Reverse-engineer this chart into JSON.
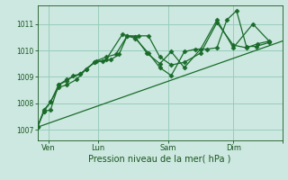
{
  "background_color": "#cce8e0",
  "grid_color": "#99ccbb",
  "line_color": "#1a6b2a",
  "marker_color": "#1a6b2a",
  "text_color": "#1a5520",
  "xlabel": "Pression niveau de la mer( hPa )",
  "ylim": [
    1006.6,
    1011.7
  ],
  "yticks": [
    1007,
    1008,
    1009,
    1010,
    1011
  ],
  "xlim": [
    0,
    150
  ],
  "xtick_positions": [
    7,
    37,
    80,
    120,
    150
  ],
  "xtick_labels": [
    "Ven",
    "Lun",
    "Sam",
    "Dim",
    ""
  ],
  "series_trend_x": [
    0,
    150
  ],
  "series_trend_y": [
    1007.1,
    1010.35
  ],
  "series1_x": [
    0,
    4,
    8,
    13,
    18,
    22,
    26,
    30,
    35,
    40,
    45,
    50,
    55,
    60,
    68,
    75,
    82,
    90,
    97,
    104,
    110,
    116,
    122,
    128,
    134,
    142
  ],
  "series1_y": [
    1007.1,
    1007.75,
    1008.05,
    1008.7,
    1008.85,
    1009.05,
    1009.1,
    1009.3,
    1009.55,
    1009.6,
    1009.65,
    1009.85,
    1010.55,
    1010.45,
    1009.9,
    1009.35,
    1009.05,
    1009.95,
    1010.05,
    1010.05,
    1010.1,
    1011.15,
    1011.5,
    1010.15,
    1010.15,
    1010.3
  ],
  "series2_x": [
    0,
    4,
    8,
    13,
    18,
    26,
    35,
    42,
    52,
    60,
    67,
    75,
    82,
    90,
    100,
    110,
    120,
    132,
    142
  ],
  "series2_y": [
    1007.1,
    1007.7,
    1007.75,
    1008.7,
    1008.9,
    1009.1,
    1009.55,
    1009.65,
    1010.6,
    1010.5,
    1009.9,
    1009.5,
    1009.95,
    1009.35,
    1010.05,
    1011.15,
    1010.1,
    1011.0,
    1010.35
  ],
  "series3_x": [
    0,
    4,
    8,
    13,
    18,
    24,
    30,
    36,
    42,
    48,
    55,
    62,
    68,
    75,
    82,
    90,
    100,
    110,
    120,
    128,
    135,
    142
  ],
  "series3_y": [
    1007.1,
    1007.7,
    1008.05,
    1008.6,
    1008.7,
    1008.9,
    1009.3,
    1009.6,
    1009.75,
    1009.85,
    1010.55,
    1010.55,
    1010.55,
    1009.75,
    1009.45,
    1009.55,
    1009.9,
    1011.05,
    1010.2,
    1010.1,
    1010.25,
    1010.35
  ]
}
